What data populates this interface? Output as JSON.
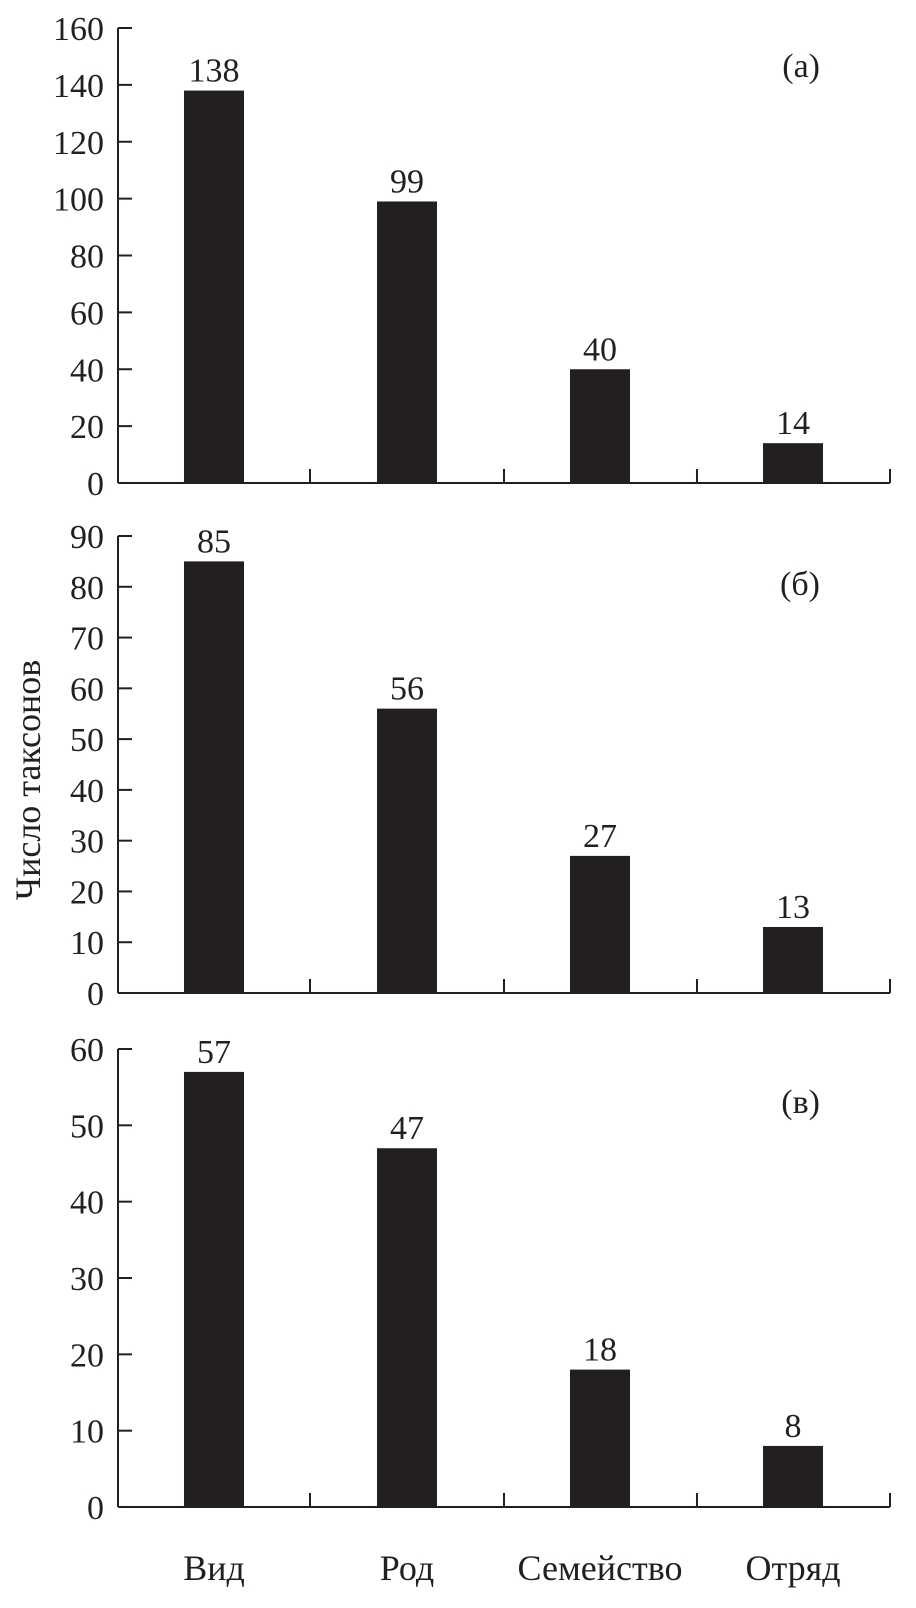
{
  "chart_data": {
    "type": "bar",
    "ylabel": "Число таксонов",
    "categories": [
      "Вид",
      "Род",
      "Семейство",
      "Отряд"
    ],
    "colors": {
      "bar": "#231f20",
      "axis": "#231f20",
      "text": "#231f20"
    },
    "panels": [
      {
        "label": "(а)",
        "values": [
          138,
          99,
          40,
          14
        ],
        "ylim": [
          0,
          160
        ],
        "yticks": [
          0,
          20,
          40,
          60,
          80,
          100,
          120,
          140,
          160
        ],
        "value_labels": [
          "138",
          "99",
          "40",
          "14"
        ]
      },
      {
        "label": "(б)",
        "values": [
          85,
          56,
          27,
          13
        ],
        "ylim": [
          0,
          90
        ],
        "yticks": [
          0,
          10,
          20,
          30,
          40,
          50,
          60,
          70,
          80,
          90
        ],
        "value_labels": [
          "85",
          "56",
          "27",
          "13"
        ]
      },
      {
        "label": "(в)",
        "values": [
          57,
          47,
          18,
          8
        ],
        "ylim": [
          0,
          60
        ],
        "yticks": [
          0,
          10,
          20,
          30,
          40,
          50,
          60
        ],
        "value_labels": [
          "57",
          "47",
          "18",
          "8"
        ]
      }
    ]
  }
}
